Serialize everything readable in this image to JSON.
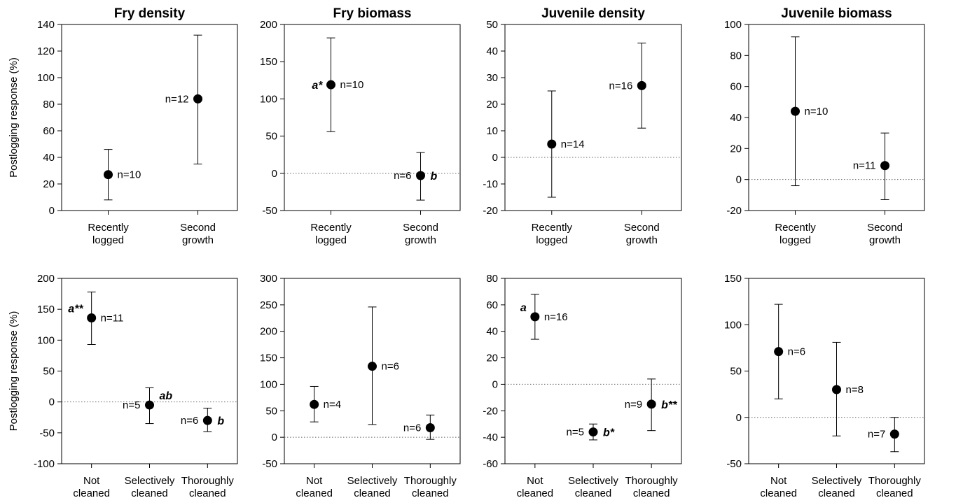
{
  "y_axis_label": "Postlogging response (%)",
  "chart_data": [
    {
      "type": "scatter",
      "title": "Fry density",
      "ylabel": "Postlogging response (%)",
      "ylim": [
        0,
        140
      ],
      "yticks": [
        0,
        20,
        40,
        60,
        80,
        100,
        120,
        140
      ],
      "categories": [
        [
          "Recently",
          "logged"
        ],
        [
          "Second",
          "growth"
        ]
      ],
      "zero_line": false,
      "points": [
        {
          "value": 27,
          "lower": 8,
          "upper": 46,
          "n": "n=10",
          "n_side": "right",
          "sig": ""
        },
        {
          "value": 84,
          "lower": 35,
          "upper": 132,
          "n": "n=12",
          "n_side": "left",
          "sig": ""
        }
      ]
    },
    {
      "type": "scatter",
      "title": "Fry biomass",
      "ylabel": "",
      "ylim": [
        -50,
        200
      ],
      "yticks": [
        -50,
        0,
        50,
        100,
        150,
        200
      ],
      "categories": [
        [
          "Recently",
          "logged"
        ],
        [
          "Second",
          "growth"
        ]
      ],
      "zero_line": true,
      "points": [
        {
          "value": 119,
          "lower": 56,
          "upper": 182,
          "n": "n=10",
          "n_side": "right",
          "sig": "a*",
          "sig_side": "left"
        },
        {
          "value": -3,
          "lower": -36,
          "upper": 28,
          "n": "n=6",
          "n_side": "left",
          "sig": "b",
          "sig_side": "right"
        }
      ]
    },
    {
      "type": "scatter",
      "title": "Juvenile density",
      "ylabel": "",
      "ylim": [
        -20,
        50
      ],
      "yticks": [
        -20,
        -10,
        0,
        10,
        20,
        30,
        40,
        50
      ],
      "categories": [
        [
          "Recently",
          "logged"
        ],
        [
          "Second",
          "growth"
        ]
      ],
      "zero_line": true,
      "points": [
        {
          "value": 5,
          "lower": -15,
          "upper": 25,
          "n": "n=14",
          "n_side": "right",
          "sig": ""
        },
        {
          "value": 27,
          "lower": 11,
          "upper": 43,
          "n": "n=16",
          "n_side": "left",
          "sig": ""
        }
      ]
    },
    {
      "type": "scatter",
      "title": "Juvenile biomass",
      "ylabel": "",
      "ylim": [
        -20,
        100
      ],
      "yticks": [
        -20,
        0,
        20,
        40,
        60,
        80,
        100
      ],
      "categories": [
        [
          "Recently",
          "logged"
        ],
        [
          "Second",
          "growth"
        ]
      ],
      "zero_line": true,
      "points": [
        {
          "value": 44,
          "lower": -4,
          "upper": 92,
          "n": "n=10",
          "n_side": "right",
          "sig": ""
        },
        {
          "value": 9,
          "lower": -13,
          "upper": 30,
          "n": "n=11",
          "n_side": "left",
          "sig": ""
        }
      ]
    },
    {
      "type": "scatter",
      "title": "",
      "ylabel": "Postlogging response (%)",
      "ylim": [
        -100,
        200
      ],
      "yticks": [
        -100,
        -50,
        0,
        50,
        100,
        150,
        200
      ],
      "categories": [
        [
          "Not",
          "cleaned"
        ],
        [
          "Selectively",
          "cleaned"
        ],
        [
          "Thoroughly",
          "cleaned"
        ]
      ],
      "zero_line": true,
      "points": [
        {
          "value": 136,
          "lower": 93,
          "upper": 178,
          "n": "n=11",
          "n_side": "right",
          "sig": "a**",
          "sig_side": "left_up"
        },
        {
          "value": -5,
          "lower": -35,
          "upper": 23,
          "n": "n=5",
          "n_side": "left",
          "sig": "ab",
          "sig_side": "right_up"
        },
        {
          "value": -30,
          "lower": -48,
          "upper": -10,
          "n": "n=6",
          "n_side": "left",
          "sig": "b",
          "sig_side": "right"
        }
      ]
    },
    {
      "type": "scatter",
      "title": "",
      "ylabel": "",
      "ylim": [
        -50,
        300
      ],
      "yticks": [
        -50,
        0,
        50,
        100,
        150,
        200,
        250,
        300
      ],
      "categories": [
        [
          "Not",
          "cleaned"
        ],
        [
          "Selectively",
          "cleaned"
        ],
        [
          "Thoroughly",
          "cleaned"
        ]
      ],
      "zero_line": true,
      "points": [
        {
          "value": 62,
          "lower": 29,
          "upper": 96,
          "n": "n=4",
          "n_side": "right",
          "sig": ""
        },
        {
          "value": 134,
          "lower": 24,
          "upper": 246,
          "n": "n=6",
          "n_side": "right",
          "sig": ""
        },
        {
          "value": 18,
          "lower": -4,
          "upper": 42,
          "n": "n=6",
          "n_side": "left",
          "sig": ""
        }
      ]
    },
    {
      "type": "scatter",
      "title": "",
      "ylabel": "",
      "ylim": [
        -60,
        80
      ],
      "yticks": [
        -60,
        -40,
        -20,
        0,
        20,
        40,
        60,
        80
      ],
      "categories": [
        [
          "Not",
          "cleaned"
        ],
        [
          "Selectively",
          "cleaned"
        ],
        [
          "Thoroughly",
          "cleaned"
        ]
      ],
      "zero_line": true,
      "points": [
        {
          "value": 51,
          "lower": 34,
          "upper": 68,
          "n": "n=16",
          "n_side": "right",
          "sig": "a",
          "sig_side": "left_up"
        },
        {
          "value": -36,
          "lower": -42,
          "upper": -30,
          "n": "n=5",
          "n_side": "left",
          "sig": "b*",
          "sig_side": "right"
        },
        {
          "value": -15,
          "lower": -35,
          "upper": 4,
          "n": "n=9",
          "n_side": "left",
          "sig": "b**",
          "sig_side": "right"
        }
      ]
    },
    {
      "type": "scatter",
      "title": "",
      "ylabel": "",
      "ylim": [
        -50,
        150
      ],
      "yticks": [
        -50,
        0,
        50,
        100,
        150
      ],
      "categories": [
        [
          "Not",
          "cleaned"
        ],
        [
          "Selectively",
          "cleaned"
        ],
        [
          "Thoroughly",
          "cleaned"
        ]
      ],
      "zero_line": true,
      "points": [
        {
          "value": 71,
          "lower": 20,
          "upper": 122,
          "n": "n=6",
          "n_side": "right",
          "sig": ""
        },
        {
          "value": 30,
          "lower": -20,
          "upper": 81,
          "n": "n=8",
          "n_side": "right",
          "sig": ""
        },
        {
          "value": -18,
          "lower": -37,
          "upper": 0,
          "n": "n=7",
          "n_side": "left",
          "sig": ""
        }
      ]
    }
  ]
}
